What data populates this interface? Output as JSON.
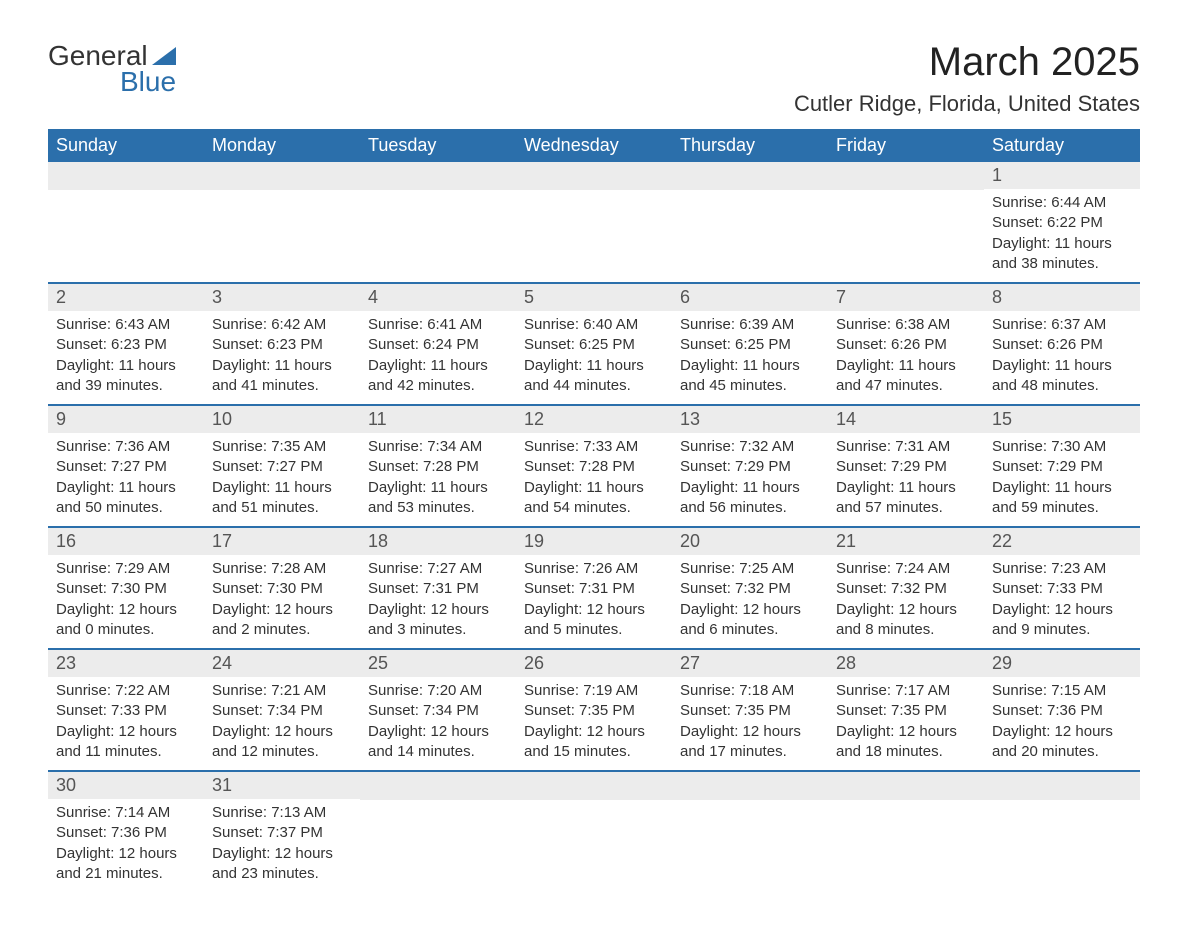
{
  "logo": {
    "text_general": "General",
    "text_blue": "Blue"
  },
  "header": {
    "month_title": "March 2025",
    "location": "Cutler Ridge, Florida, United States"
  },
  "styling": {
    "header_bg": "#2b6fab",
    "header_text": "#ffffff",
    "date_bg": "#ececec",
    "date_text": "#555555",
    "body_text": "#333333",
    "divider_color": "#2b6fab",
    "title_fontsize": 40,
    "location_fontsize": 22,
    "dayheader_fontsize": 18,
    "datenum_fontsize": 18,
    "cell_fontsize": 15
  },
  "day_names": [
    "Sunday",
    "Monday",
    "Tuesday",
    "Wednesday",
    "Thursday",
    "Friday",
    "Saturday"
  ],
  "weeks": [
    [
      {
        "date": "",
        "sunrise": "",
        "sunset": "",
        "daylight1": "",
        "daylight2": ""
      },
      {
        "date": "",
        "sunrise": "",
        "sunset": "",
        "daylight1": "",
        "daylight2": ""
      },
      {
        "date": "",
        "sunrise": "",
        "sunset": "",
        "daylight1": "",
        "daylight2": ""
      },
      {
        "date": "",
        "sunrise": "",
        "sunset": "",
        "daylight1": "",
        "daylight2": ""
      },
      {
        "date": "",
        "sunrise": "",
        "sunset": "",
        "daylight1": "",
        "daylight2": ""
      },
      {
        "date": "",
        "sunrise": "",
        "sunset": "",
        "daylight1": "",
        "daylight2": ""
      },
      {
        "date": "1",
        "sunrise": "Sunrise: 6:44 AM",
        "sunset": "Sunset: 6:22 PM",
        "daylight1": "Daylight: 11 hours",
        "daylight2": "and 38 minutes."
      }
    ],
    [
      {
        "date": "2",
        "sunrise": "Sunrise: 6:43 AM",
        "sunset": "Sunset: 6:23 PM",
        "daylight1": "Daylight: 11 hours",
        "daylight2": "and 39 minutes."
      },
      {
        "date": "3",
        "sunrise": "Sunrise: 6:42 AM",
        "sunset": "Sunset: 6:23 PM",
        "daylight1": "Daylight: 11 hours",
        "daylight2": "and 41 minutes."
      },
      {
        "date": "4",
        "sunrise": "Sunrise: 6:41 AM",
        "sunset": "Sunset: 6:24 PM",
        "daylight1": "Daylight: 11 hours",
        "daylight2": "and 42 minutes."
      },
      {
        "date": "5",
        "sunrise": "Sunrise: 6:40 AM",
        "sunset": "Sunset: 6:25 PM",
        "daylight1": "Daylight: 11 hours",
        "daylight2": "and 44 minutes."
      },
      {
        "date": "6",
        "sunrise": "Sunrise: 6:39 AM",
        "sunset": "Sunset: 6:25 PM",
        "daylight1": "Daylight: 11 hours",
        "daylight2": "and 45 minutes."
      },
      {
        "date": "7",
        "sunrise": "Sunrise: 6:38 AM",
        "sunset": "Sunset: 6:26 PM",
        "daylight1": "Daylight: 11 hours",
        "daylight2": "and 47 minutes."
      },
      {
        "date": "8",
        "sunrise": "Sunrise: 6:37 AM",
        "sunset": "Sunset: 6:26 PM",
        "daylight1": "Daylight: 11 hours",
        "daylight2": "and 48 minutes."
      }
    ],
    [
      {
        "date": "9",
        "sunrise": "Sunrise: 7:36 AM",
        "sunset": "Sunset: 7:27 PM",
        "daylight1": "Daylight: 11 hours",
        "daylight2": "and 50 minutes."
      },
      {
        "date": "10",
        "sunrise": "Sunrise: 7:35 AM",
        "sunset": "Sunset: 7:27 PM",
        "daylight1": "Daylight: 11 hours",
        "daylight2": "and 51 minutes."
      },
      {
        "date": "11",
        "sunrise": "Sunrise: 7:34 AM",
        "sunset": "Sunset: 7:28 PM",
        "daylight1": "Daylight: 11 hours",
        "daylight2": "and 53 minutes."
      },
      {
        "date": "12",
        "sunrise": "Sunrise: 7:33 AM",
        "sunset": "Sunset: 7:28 PM",
        "daylight1": "Daylight: 11 hours",
        "daylight2": "and 54 minutes."
      },
      {
        "date": "13",
        "sunrise": "Sunrise: 7:32 AM",
        "sunset": "Sunset: 7:29 PM",
        "daylight1": "Daylight: 11 hours",
        "daylight2": "and 56 minutes."
      },
      {
        "date": "14",
        "sunrise": "Sunrise: 7:31 AM",
        "sunset": "Sunset: 7:29 PM",
        "daylight1": "Daylight: 11 hours",
        "daylight2": "and 57 minutes."
      },
      {
        "date": "15",
        "sunrise": "Sunrise: 7:30 AM",
        "sunset": "Sunset: 7:29 PM",
        "daylight1": "Daylight: 11 hours",
        "daylight2": "and 59 minutes."
      }
    ],
    [
      {
        "date": "16",
        "sunrise": "Sunrise: 7:29 AM",
        "sunset": "Sunset: 7:30 PM",
        "daylight1": "Daylight: 12 hours",
        "daylight2": "and 0 minutes."
      },
      {
        "date": "17",
        "sunrise": "Sunrise: 7:28 AM",
        "sunset": "Sunset: 7:30 PM",
        "daylight1": "Daylight: 12 hours",
        "daylight2": "and 2 minutes."
      },
      {
        "date": "18",
        "sunrise": "Sunrise: 7:27 AM",
        "sunset": "Sunset: 7:31 PM",
        "daylight1": "Daylight: 12 hours",
        "daylight2": "and 3 minutes."
      },
      {
        "date": "19",
        "sunrise": "Sunrise: 7:26 AM",
        "sunset": "Sunset: 7:31 PM",
        "daylight1": "Daylight: 12 hours",
        "daylight2": "and 5 minutes."
      },
      {
        "date": "20",
        "sunrise": "Sunrise: 7:25 AM",
        "sunset": "Sunset: 7:32 PM",
        "daylight1": "Daylight: 12 hours",
        "daylight2": "and 6 minutes."
      },
      {
        "date": "21",
        "sunrise": "Sunrise: 7:24 AM",
        "sunset": "Sunset: 7:32 PM",
        "daylight1": "Daylight: 12 hours",
        "daylight2": "and 8 minutes."
      },
      {
        "date": "22",
        "sunrise": "Sunrise: 7:23 AM",
        "sunset": "Sunset: 7:33 PM",
        "daylight1": "Daylight: 12 hours",
        "daylight2": "and 9 minutes."
      }
    ],
    [
      {
        "date": "23",
        "sunrise": "Sunrise: 7:22 AM",
        "sunset": "Sunset: 7:33 PM",
        "daylight1": "Daylight: 12 hours",
        "daylight2": "and 11 minutes."
      },
      {
        "date": "24",
        "sunrise": "Sunrise: 7:21 AM",
        "sunset": "Sunset: 7:34 PM",
        "daylight1": "Daylight: 12 hours",
        "daylight2": "and 12 minutes."
      },
      {
        "date": "25",
        "sunrise": "Sunrise: 7:20 AM",
        "sunset": "Sunset: 7:34 PM",
        "daylight1": "Daylight: 12 hours",
        "daylight2": "and 14 minutes."
      },
      {
        "date": "26",
        "sunrise": "Sunrise: 7:19 AM",
        "sunset": "Sunset: 7:35 PM",
        "daylight1": "Daylight: 12 hours",
        "daylight2": "and 15 minutes."
      },
      {
        "date": "27",
        "sunrise": "Sunrise: 7:18 AM",
        "sunset": "Sunset: 7:35 PM",
        "daylight1": "Daylight: 12 hours",
        "daylight2": "and 17 minutes."
      },
      {
        "date": "28",
        "sunrise": "Sunrise: 7:17 AM",
        "sunset": "Sunset: 7:35 PM",
        "daylight1": "Daylight: 12 hours",
        "daylight2": "and 18 minutes."
      },
      {
        "date": "29",
        "sunrise": "Sunrise: 7:15 AM",
        "sunset": "Sunset: 7:36 PM",
        "daylight1": "Daylight: 12 hours",
        "daylight2": "and 20 minutes."
      }
    ],
    [
      {
        "date": "30",
        "sunrise": "Sunrise: 7:14 AM",
        "sunset": "Sunset: 7:36 PM",
        "daylight1": "Daylight: 12 hours",
        "daylight2": "and 21 minutes."
      },
      {
        "date": "31",
        "sunrise": "Sunrise: 7:13 AM",
        "sunset": "Sunset: 7:37 PM",
        "daylight1": "Daylight: 12 hours",
        "daylight2": "and 23 minutes."
      },
      {
        "date": "",
        "sunrise": "",
        "sunset": "",
        "daylight1": "",
        "daylight2": ""
      },
      {
        "date": "",
        "sunrise": "",
        "sunset": "",
        "daylight1": "",
        "daylight2": ""
      },
      {
        "date": "",
        "sunrise": "",
        "sunset": "",
        "daylight1": "",
        "daylight2": ""
      },
      {
        "date": "",
        "sunrise": "",
        "sunset": "",
        "daylight1": "",
        "daylight2": ""
      },
      {
        "date": "",
        "sunrise": "",
        "sunset": "",
        "daylight1": "",
        "daylight2": ""
      }
    ]
  ]
}
